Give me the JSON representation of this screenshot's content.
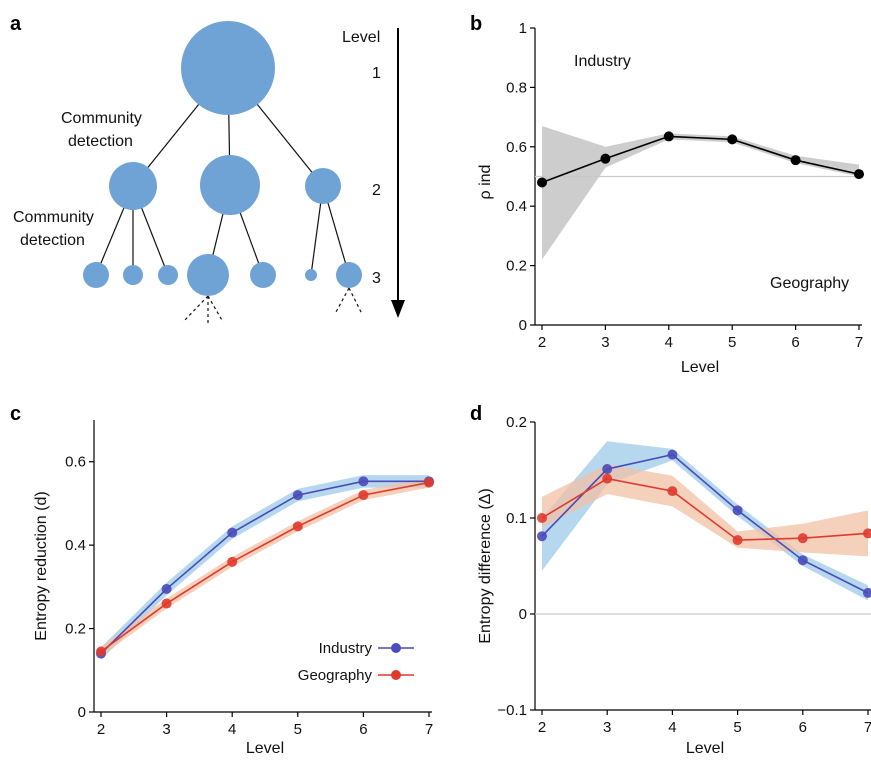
{
  "colors": {
    "node": "#6fa3d6",
    "industry": "#4a4ab8",
    "industry_band": "#9ccbe9",
    "geography": "#e03a2e",
    "geography_band": "#f2c2a6",
    "rho_line": "#000000",
    "rho_band": "#c8c8c8",
    "reference": "#cccccc"
  },
  "panel_a": {
    "label": "a",
    "level_title": "Level",
    "level_numbers": [
      "1",
      "2",
      "3"
    ],
    "community_detection_1": [
      "Community",
      "detection"
    ],
    "community_detection_2": [
      "Community",
      "detection"
    ]
  },
  "chart_data": [
    {
      "panel": "b",
      "type": "line",
      "x": [
        2,
        3,
        4,
        5,
        6,
        7
      ],
      "series": [
        {
          "values": [
            0.48,
            0.56,
            0.635,
            0.625,
            0.555,
            0.508
          ],
          "band_low": [
            0.22,
            0.53,
            0.625,
            0.615,
            0.545,
            0.5
          ],
          "band_high": [
            0.67,
            0.6,
            0.645,
            0.635,
            0.57,
            0.54
          ]
        }
      ],
      "reference_line": 0.5,
      "xlabel": "Level",
      "ylabel": "ρ ind",
      "xlim": [
        2,
        7
      ],
      "ylim": [
        0,
        1
      ],
      "xticks": [
        2,
        3,
        4,
        5,
        6,
        7
      ],
      "yticks": [
        0,
        0.2,
        0.4,
        0.6,
        0.8,
        1
      ],
      "ytick_labels": [
        "0",
        "0.2",
        "0.4",
        "0.6",
        "0.8",
        "1"
      ],
      "annotations": [
        "Industry",
        "Geography"
      ]
    },
    {
      "panel": "c",
      "type": "line",
      "x": [
        2,
        3,
        4,
        5,
        6,
        7
      ],
      "series": [
        {
          "name": "Industry",
          "values": [
            0.14,
            0.295,
            0.43,
            0.52,
            0.553,
            0.553
          ],
          "band": 0.015
        },
        {
          "name": "Geography",
          "values": [
            0.145,
            0.26,
            0.36,
            0.445,
            0.52,
            0.55
          ],
          "band": 0.012
        }
      ],
      "xlabel": "Level",
      "ylabel": "Entropy reduction (d)",
      "xlim": [
        2,
        7
      ],
      "ylim": [
        0,
        0.7
      ],
      "xticks": [
        2,
        3,
        4,
        5,
        6,
        7
      ],
      "yticks": [
        0,
        0.2,
        0.4,
        0.6
      ],
      "ytick_labels": [
        "0",
        "0.2",
        "0.4",
        "0.6"
      ],
      "legend": "bottom-right"
    },
    {
      "panel": "d",
      "type": "line",
      "x": [
        2,
        3,
        4,
        5,
        6,
        7
      ],
      "series": [
        {
          "name": "Industry",
          "values": [
            0.081,
            0.151,
            0.166,
            0.108,
            0.056,
            0.022
          ],
          "band_low": [
            0.045,
            0.135,
            0.16,
            0.102,
            0.05,
            0.014
          ],
          "band_high": [
            0.1,
            0.18,
            0.172,
            0.114,
            0.062,
            0.03
          ]
        },
        {
          "name": "Geography",
          "values": [
            0.1,
            0.141,
            0.128,
            0.077,
            0.079,
            0.084
          ],
          "band_low": [
            0.09,
            0.125,
            0.112,
            0.069,
            0.064,
            0.06
          ],
          "band_high": [
            0.122,
            0.156,
            0.144,
            0.086,
            0.094,
            0.108
          ]
        }
      ],
      "reference_line": 0,
      "xlabel": "Level",
      "ylabel": "Entropy difference (Δ)",
      "xlim": [
        2,
        7
      ],
      "ylim": [
        -0.1,
        0.2
      ],
      "xticks": [
        2,
        3,
        4,
        5,
        6,
        7
      ],
      "yticks": [
        -0.1,
        0,
        0.1,
        0.2
      ],
      "ytick_labels": [
        "−0.1",
        "0",
        "0.1",
        "0.2"
      ]
    }
  ],
  "panel_labels": [
    "b",
    "c",
    "d"
  ]
}
